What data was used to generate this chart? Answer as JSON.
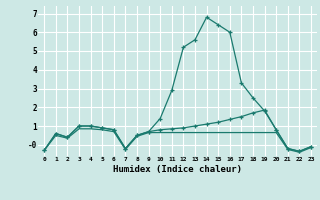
{
  "xlabel": "Humidex (Indice chaleur)",
  "x": [
    0,
    1,
    2,
    3,
    4,
    5,
    6,
    7,
    8,
    9,
    10,
    11,
    12,
    13,
    14,
    15,
    16,
    17,
    18,
    19,
    20,
    21,
    22,
    23
  ],
  "line1": [
    -0.3,
    0.6,
    0.4,
    1.0,
    1.0,
    0.9,
    0.8,
    -0.2,
    0.5,
    0.7,
    1.4,
    2.9,
    5.2,
    5.6,
    6.8,
    6.4,
    6.0,
    3.3,
    2.5,
    1.8,
    0.8,
    -0.2,
    -0.35,
    -0.1
  ],
  "line2": [
    -0.3,
    0.6,
    0.4,
    1.0,
    1.0,
    0.9,
    0.8,
    -0.2,
    0.5,
    0.7,
    0.8,
    0.85,
    0.9,
    1.0,
    1.1,
    1.2,
    1.35,
    1.5,
    1.7,
    1.85,
    0.8,
    -0.2,
    -0.35,
    -0.1
  ],
  "line3": [
    -0.3,
    0.5,
    0.35,
    0.85,
    0.85,
    0.8,
    0.7,
    -0.25,
    0.45,
    0.65,
    0.65,
    0.65,
    0.65,
    0.65,
    0.65,
    0.65,
    0.65,
    0.65,
    0.65,
    0.65,
    0.65,
    -0.25,
    -0.4,
    -0.15
  ],
  "line_color": "#1a7a6e",
  "bg_color": "#cde8e5",
  "grid_color": "#ffffff",
  "ylim": [
    -0.6,
    7.4
  ],
  "xlim": [
    -0.5,
    23.5
  ],
  "yticks": [
    0,
    1,
    2,
    3,
    4,
    5,
    6,
    7
  ],
  "ytick_labels": [
    "-0",
    "1",
    "2",
    "3",
    "4",
    "5",
    "6",
    "7"
  ],
  "xticks": [
    0,
    1,
    2,
    3,
    4,
    5,
    6,
    7,
    8,
    9,
    10,
    11,
    12,
    13,
    14,
    15,
    16,
    17,
    18,
    19,
    20,
    21,
    22,
    23
  ]
}
